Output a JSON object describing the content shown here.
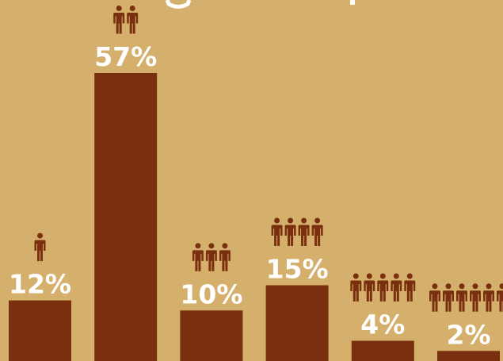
{
  "colors": {
    "background": "#d5b06c",
    "bar": "#7a300e",
    "label": "#ffffff",
    "person_icon": "#7a300e"
  },
  "icon_name": "person-icon",
  "chart_data": {
    "type": "bar",
    "categories": [
      "",
      "",
      "",
      "",
      "",
      ""
    ],
    "person_counts": [
      1,
      2,
      3,
      4,
      5,
      6
    ],
    "values": [
      12,
      57,
      10,
      15,
      4,
      2
    ],
    "value_labels": [
      "12%",
      "57%",
      "10%",
      "15%",
      "4%",
      "2%"
    ],
    "ylim": [
      0,
      73
    ],
    "grid": false,
    "legend": "none"
  }
}
